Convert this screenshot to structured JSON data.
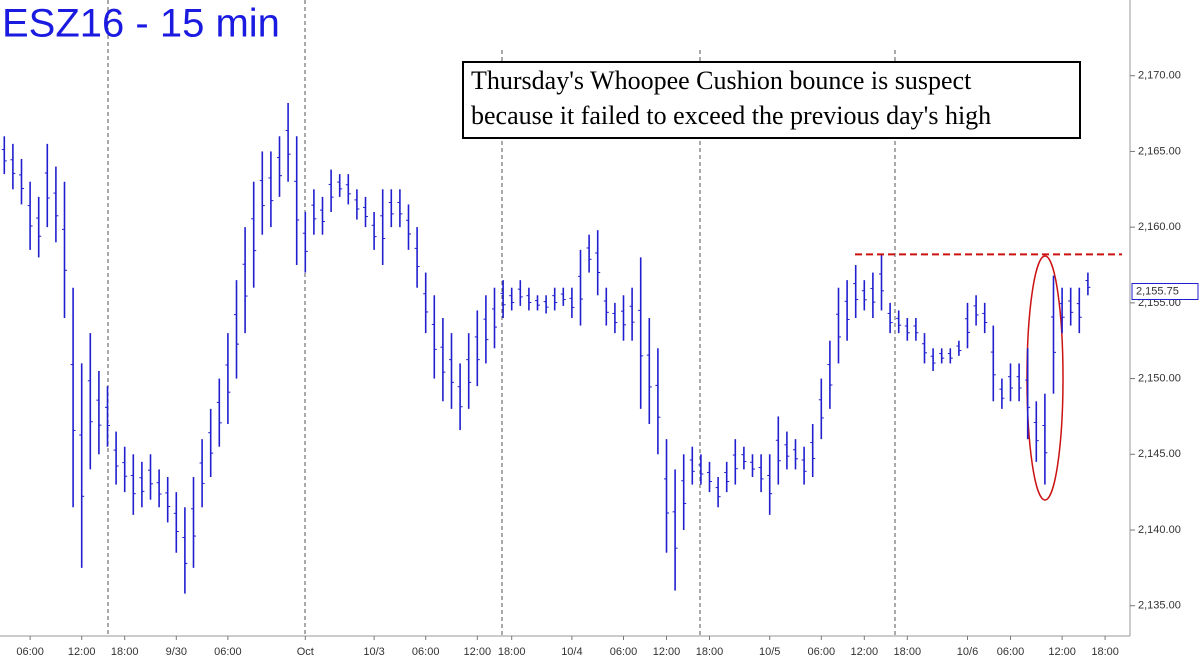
{
  "chart_data": {
    "type": "range_bar",
    "title": "ESZ16 - 15 min",
    "annotation": [
      "Thursday's Whoopee Cushion bounce is suspect",
      "because it failed to exceed the previous day's high"
    ],
    "color": "#1f1fd0",
    "resistance": {
      "value": 2158.2,
      "color": "#cc1111"
    },
    "last_price": {
      "value": 2155.75,
      "label": "2,155.75"
    },
    "ylim": [
      2133,
      2175
    ],
    "yticks": [
      {
        "value": 2135,
        "label": "2,135.00"
      },
      {
        "value": 2140,
        "label": "2,140.00"
      },
      {
        "value": 2145,
        "label": "2,145.00"
      },
      {
        "value": 2150,
        "label": "2,150.00"
      },
      {
        "value": 2155,
        "label": "2,155.00"
      },
      {
        "value": 2160,
        "label": "2,160.00"
      },
      {
        "value": 2165,
        "label": "2,165.00"
      },
      {
        "value": 2170,
        "label": "2,170.00"
      }
    ],
    "categories": [
      null,
      null,
      null,
      "06:00",
      null,
      null,
      null,
      null,
      null,
      "12:00",
      null,
      null,
      null,
      null,
      "18:00",
      null,
      null,
      null,
      null,
      null,
      "9/30",
      null,
      null,
      null,
      null,
      null,
      "06:00",
      null,
      null,
      null,
      null,
      null,
      null,
      null,
      null,
      "Oct",
      null,
      null,
      null,
      null,
      null,
      null,
      null,
      "10/3",
      null,
      null,
      null,
      null,
      null,
      "06:00",
      null,
      null,
      null,
      null,
      null,
      "12:00",
      null,
      null,
      null,
      "18:00",
      null,
      null,
      null,
      null,
      null,
      null,
      "10/4",
      null,
      null,
      null,
      null,
      null,
      "06:00",
      null,
      null,
      null,
      null,
      "12:00",
      null,
      null,
      null,
      null,
      "18:00",
      null,
      null,
      null,
      null,
      null,
      null,
      "10/5",
      null,
      null,
      null,
      null,
      null,
      "06:00",
      null,
      null,
      null,
      null,
      "12:00",
      null,
      null,
      null,
      null,
      "18:00",
      null,
      null,
      null,
      null,
      null,
      null,
      "10/6",
      null,
      null,
      null,
      null,
      "06:00",
      null,
      null,
      null,
      null,
      null,
      "12:00",
      null,
      null,
      null,
      null,
      "18:00",
      null,
      null
    ],
    "high": [
      2166,
      2165.5,
      2164.5,
      2163,
      2162,
      2165.5,
      2164,
      2163,
      2156,
      2151,
      2153,
      2150.5,
      2149.5,
      2146.5,
      2145.5,
      2145,
      2144.5,
      2145,
      2144,
      2143.5,
      2142.5,
      2141.5,
      2143.5,
      2146,
      2148,
      2150,
      2153,
      2156.5,
      2160,
      2163,
      2165,
      2165,
      2166,
      2168.2,
      2166,
      2161,
      2162.5,
      2162,
      2163.8,
      2163.5,
      2163.5,
      2162.5,
      2162,
      2161,
      2162.5,
      2162.5,
      2162.5,
      2161.5,
      2160,
      2157,
      2155.5,
      2154,
      2153,
      2151,
      2153,
      2154.5,
      2155.5,
      2156,
      2156.5,
      2156,
      2156.5,
      2156,
      2155.5,
      2155.5,
      2156,
      2156,
      2156,
      2158.5,
      2159.5,
      2159.8,
      2156,
      2155,
      2155.5,
      2156,
      2158,
      2154,
      2152,
      2146,
      2144,
      2145,
      2145.5,
      2145,
      2144.5,
      2143.5,
      2144.5,
      2146,
      2145.5,
      2145,
      2145,
      2145,
      2147.5,
      2146.5,
      2146,
      2145.5,
      2147,
      2150,
      2152.5,
      2156,
      2156.5,
      2157.5,
      2156.5,
      2157,
      2158.2,
      2155,
      2154.5,
      2154,
      2154,
      2153,
      2152,
      2152,
      2152,
      2152.5,
      2155,
      2155.5,
      2155,
      2153.5,
      2150,
      2151,
      2151,
      2152,
      2148.5,
      2149,
      2156.8,
      2156,
      2156,
      2156,
      2157,
      null,
      null,
      null,
      null
    ],
    "low": [
      2163.5,
      2162.5,
      2161.5,
      2158.5,
      2158,
      2160,
      2159,
      2154,
      2141.5,
      2137.5,
      2144,
      2145,
      2145.5,
      2143,
      2142.5,
      2141,
      2141.5,
      2142,
      2141.5,
      2140.5,
      2138.5,
      2135.8,
      2137.5,
      2141.5,
      2143.5,
      2145.5,
      2147,
      2150,
      2153,
      2156,
      2159.5,
      2160,
      2162,
      2163,
      2157.5,
      2157,
      2159.5,
      2159.5,
      2161,
      2162,
      2161.5,
      2160.5,
      2160,
      2158.5,
      2157.5,
      2160,
      2160,
      2158.5,
      2156,
      2153,
      2150,
      2148.5,
      2148,
      2146.6,
      2148,
      2149.5,
      2151,
      2152,
      2154,
      2154.5,
      2154.8,
      2154.5,
      2154.5,
      2154.3,
      2154.5,
      2154.8,
      2154,
      2153.5,
      2157,
      2155.5,
      2153.5,
      2153,
      2152.5,
      2152.5,
      2148,
      2147,
      2145,
      2138.5,
      2136,
      2140,
      2143,
      2143,
      2142.5,
      2141.5,
      2142.5,
      2143,
      2144,
      2143.5,
      2142.5,
      2141,
      2143,
      2144,
      2144,
      2143,
      2143.5,
      2146,
      2148,
      2151,
      2152.5,
      2154,
      2154.5,
      2154,
      2154.5,
      2153,
      2153,
      2152.5,
      2152.5,
      2151,
      2150.5,
      2151,
      2151,
      2151.5,
      2152,
      2153.5,
      2153,
      2148.5,
      2148,
      2148.5,
      2148.5,
      2146,
      2144.5,
      2143,
      2149,
      2153,
      2153.5,
      2153,
      2155.5,
      null,
      null,
      null,
      null
    ]
  }
}
